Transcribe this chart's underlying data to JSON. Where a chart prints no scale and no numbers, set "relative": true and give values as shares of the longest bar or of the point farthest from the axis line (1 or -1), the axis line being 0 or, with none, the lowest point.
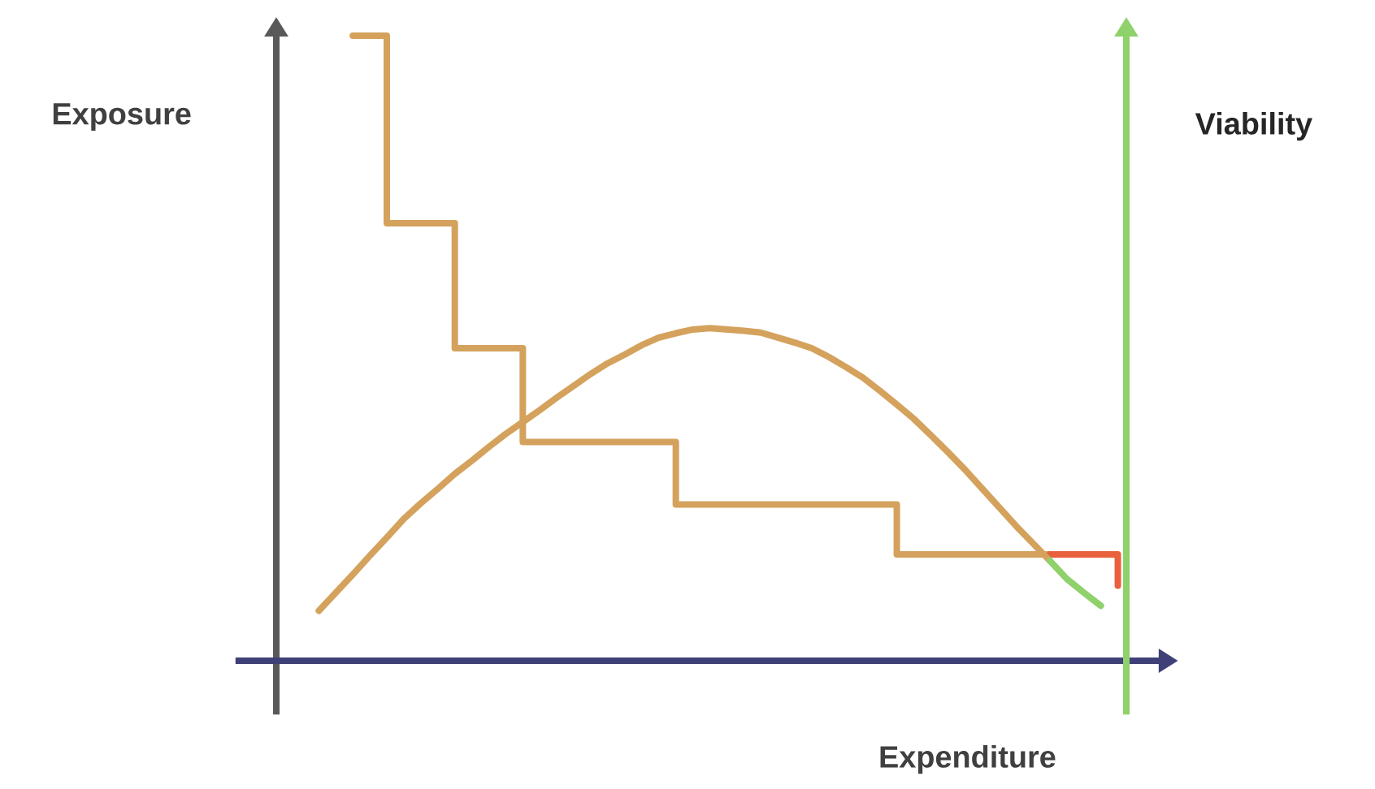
{
  "chart_data": {
    "type": "line",
    "relative": true,
    "xlabel": "Expenditure",
    "ylabel": "Exposure",
    "y2label": "Viability",
    "line_style": "solid",
    "marker": "none",
    "categories": [
      null,
      null,
      null,
      null,
      null,
      null,
      null,
      null,
      null,
      null,
      null,
      null,
      null,
      null,
      null,
      null,
      null,
      null,
      null,
      null,
      null,
      null,
      null,
      null,
      null,
      null,
      null,
      null,
      null,
      null,
      null,
      null,
      null,
      null,
      null,
      null,
      null,
      null,
      null,
      null,
      null,
      null,
      null,
      null,
      null,
      null,
      null,
      null,
      null,
      null
    ],
    "series": [
      {
        "type": "step",
        "color": "#d4a25c",
        "values": [
          null,
          null,
          null,
          null,
          1.0,
          1.0,
          0.7,
          0.7,
          0.7,
          0.7,
          0.5,
          0.5,
          0.5,
          0.5,
          0.35,
          0.35,
          0.35,
          0.35,
          0.35,
          0.35,
          0.35,
          0.35,
          0.35,
          0.25,
          0.25,
          0.25,
          0.25,
          0.25,
          0.25,
          0.25,
          0.25,
          0.25,
          0.25,
          0.25,
          0.25,
          0.25,
          0.17,
          0.17,
          0.17,
          0.17,
          0.17,
          0.17,
          0.17,
          0.17,
          0.17,
          0.17,
          null,
          null,
          null,
          null
        ]
      },
      {
        "type": "step",
        "color": "#e8603c",
        "values": [
          null,
          null,
          null,
          null,
          null,
          null,
          null,
          null,
          null,
          null,
          null,
          null,
          null,
          null,
          null,
          null,
          null,
          null,
          null,
          null,
          null,
          null,
          null,
          null,
          null,
          null,
          null,
          null,
          null,
          null,
          null,
          null,
          null,
          null,
          null,
          null,
          null,
          null,
          null,
          null,
          null,
          null,
          null,
          null,
          null,
          0.17,
          0.17,
          0.17,
          0.17,
          0.12
        ]
      },
      {
        "color": "#d4a25c",
        "values": [
          null,
          null,
          0.08,
          0.109,
          0.138,
          0.168,
          0.197,
          0.227,
          0.252,
          0.275,
          0.299,
          0.32,
          0.342,
          0.363,
          0.382,
          0.401,
          0.421,
          0.44,
          0.459,
          0.476,
          0.49,
          0.505,
          0.517,
          0.524,
          0.53,
          0.532,
          0.53,
          0.528,
          0.525,
          0.517,
          0.509,
          0.5,
          0.486,
          0.47,
          0.453,
          0.432,
          0.41,
          0.387,
          0.361,
          0.334,
          0.306,
          0.276,
          0.246,
          0.216,
          0.188,
          0.16,
          null,
          null,
          null,
          null
        ]
      },
      {
        "color": "#8fd16a",
        "values": [
          null,
          null,
          null,
          null,
          null,
          null,
          null,
          null,
          null,
          null,
          null,
          null,
          null,
          null,
          null,
          null,
          null,
          null,
          null,
          null,
          null,
          null,
          null,
          null,
          null,
          null,
          null,
          null,
          null,
          null,
          null,
          null,
          null,
          null,
          null,
          null,
          null,
          null,
          null,
          null,
          null,
          null,
          null,
          null,
          null,
          0.16,
          0.131,
          0.109,
          0.088,
          null
        ]
      }
    ]
  }
}
